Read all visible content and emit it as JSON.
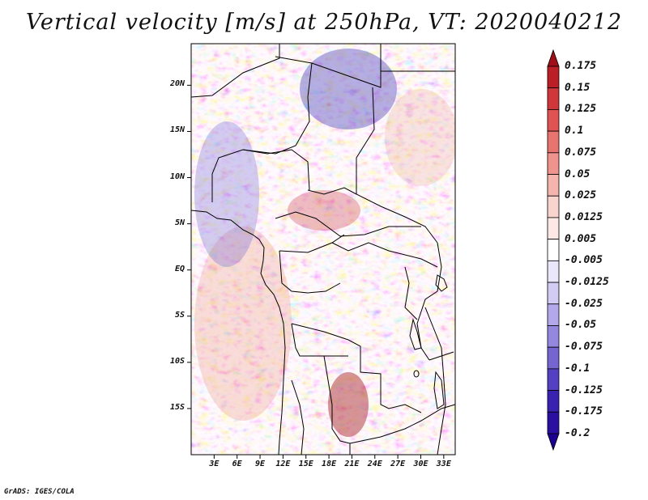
{
  "title": "Vertical velocity [m/s] at 250hPa, VT: 2020040212",
  "map": {
    "lat_labels": [
      "20N",
      "15N",
      "10N",
      "5N",
      "EQ",
      "5S",
      "10S",
      "15S"
    ],
    "lon_labels": [
      "3E",
      "6E",
      "9E",
      "12E",
      "15E",
      "18E",
      "21E",
      "24E",
      "27E",
      "30E",
      "33E"
    ],
    "lat_values": [
      20,
      15,
      10,
      5,
      0,
      -5,
      -10,
      -15
    ],
    "lon_values": [
      3,
      6,
      9,
      12,
      15,
      18,
      21,
      24,
      27,
      30,
      33
    ],
    "lat_range": [
      -20,
      24.5
    ],
    "lon_range": [
      0,
      34.5
    ]
  },
  "colorbar": {
    "labels": [
      "0.175",
      "0.15",
      "0.125",
      "0.1",
      "0.075",
      "0.05",
      "0.025",
      "0.0125",
      "0.005",
      "-0.005",
      "-0.0125",
      "-0.025",
      "-0.05",
      "-0.075",
      "-0.1",
      "-0.125",
      "-0.175",
      "-0.2"
    ],
    "colors": [
      "#a00f17",
      "#bb1f25",
      "#d0373a",
      "#df5453",
      "#e87470",
      "#ee938d",
      "#f4b5ae",
      "#f9d4ce",
      "#fce9e5",
      "#ffffff",
      "#ebe7fa",
      "#d2ccf4",
      "#b3a9ea",
      "#9488de",
      "#7565d1",
      "#5340c2",
      "#3a22b0",
      "#2a0fa0",
      "#1c0090"
    ]
  },
  "credit": "GrADS: IGES/COLA"
}
